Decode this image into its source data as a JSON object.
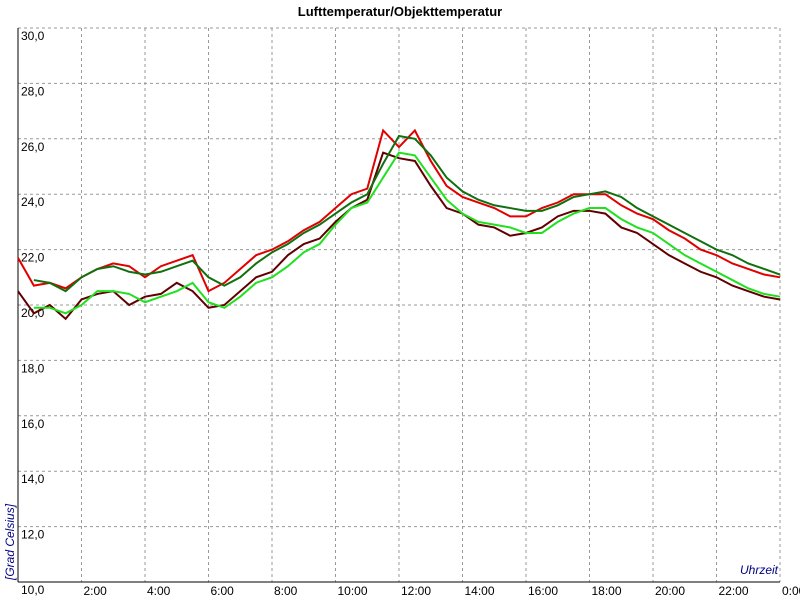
{
  "chart_data": {
    "type": "line",
    "title": "Lufttemperatur/Objekttemperatur",
    "ylabel": "[Grad Celsius]",
    "xlabel": "Uhrzeit",
    "x": [
      0,
      0.5,
      1,
      1.5,
      2,
      2.5,
      3,
      3.5,
      4,
      4.5,
      5,
      5.5,
      6,
      6.5,
      7,
      7.5,
      8,
      8.5,
      9,
      9.5,
      10,
      10.5,
      11,
      11.5,
      12,
      12.5,
      13,
      13.5,
      14,
      14.5,
      15,
      15.5,
      16,
      16.5,
      17,
      17.5,
      18,
      18.5,
      19,
      19.5,
      20,
      20.5,
      21,
      21.5,
      22,
      22.5,
      23,
      23.5,
      24
    ],
    "series": [
      {
        "color": "#e00000",
        "values": [
          21.7,
          20.7,
          20.8,
          20.6,
          21.0,
          21.3,
          21.5,
          21.4,
          21.0,
          21.4,
          21.6,
          21.8,
          20.5,
          20.8,
          21.3,
          21.8,
          22.0,
          22.3,
          22.7,
          23.0,
          23.5,
          24.0,
          24.2,
          26.3,
          25.7,
          26.3,
          25.2,
          24.3,
          23.9,
          23.7,
          23.5,
          23.2,
          23.2,
          23.5,
          23.7,
          24.0,
          24.0,
          24.0,
          23.6,
          23.3,
          23.1,
          22.7,
          22.4,
          22.0,
          21.8,
          21.5,
          21.3,
          21.1,
          21.0
        ]
      },
      {
        "color": "#600000",
        "values": [
          20.5,
          19.7,
          20.0,
          19.5,
          20.2,
          20.4,
          20.5,
          20.0,
          20.3,
          20.4,
          20.8,
          20.5,
          19.9,
          20.0,
          20.5,
          21.0,
          21.2,
          21.8,
          22.2,
          22.4,
          23.0,
          23.5,
          23.8,
          25.5,
          25.3,
          25.2,
          24.3,
          23.5,
          23.3,
          22.9,
          22.8,
          22.5,
          22.6,
          22.8,
          23.2,
          23.4,
          23.4,
          23.3,
          22.8,
          22.6,
          22.2,
          21.8,
          21.5,
          21.2,
          21.0,
          20.7,
          20.5,
          20.3,
          20.2
        ]
      },
      {
        "color": "#107010",
        "values": [
          null,
          20.9,
          20.8,
          20.5,
          21.0,
          21.3,
          21.4,
          21.2,
          21.1,
          21.2,
          21.4,
          21.6,
          21.0,
          20.7,
          21.0,
          21.5,
          21.9,
          22.2,
          22.6,
          22.9,
          23.3,
          23.7,
          24.0,
          25.1,
          26.1,
          26.0,
          25.4,
          24.6,
          24.1,
          23.8,
          23.6,
          23.5,
          23.4,
          23.4,
          23.6,
          23.9,
          24.0,
          24.1,
          23.9,
          23.5,
          23.2,
          22.9,
          22.6,
          22.3,
          22.0,
          21.8,
          21.5,
          21.3,
          21.1
        ]
      },
      {
        "color": "#20e020",
        "values": [
          null,
          19.9,
          19.9,
          19.7,
          20.0,
          20.5,
          20.5,
          20.4,
          20.1,
          20.3,
          20.5,
          20.8,
          20.1,
          19.9,
          20.3,
          20.8,
          21.0,
          21.4,
          21.9,
          22.2,
          22.9,
          23.5,
          23.7,
          24.6,
          25.5,
          25.4,
          24.6,
          23.8,
          23.3,
          23.0,
          22.9,
          22.8,
          22.6,
          22.6,
          23.0,
          23.3,
          23.5,
          23.5,
          23.1,
          22.8,
          22.6,
          22.2,
          21.8,
          21.5,
          21.2,
          20.9,
          20.6,
          20.4,
          20.3
        ]
      }
    ],
    "xlim": [
      0,
      24
    ],
    "xticks": [
      {
        "value": 2,
        "label": "2:00"
      },
      {
        "value": 4,
        "label": "4:00"
      },
      {
        "value": 6,
        "label": "6:00"
      },
      {
        "value": 8,
        "label": "8:00"
      },
      {
        "value": 10,
        "label": "10:00"
      },
      {
        "value": 12,
        "label": "12:00"
      },
      {
        "value": 14,
        "label": "14:00"
      },
      {
        "value": 16,
        "label": "16:00"
      },
      {
        "value": 18,
        "label": "18:00"
      },
      {
        "value": 20,
        "label": "20:00"
      },
      {
        "value": 22,
        "label": "22:00"
      },
      {
        "value": 24,
        "label": "0:00"
      }
    ],
    "ylim": [
      10,
      30
    ],
    "yticks": [
      {
        "value": 10,
        "label": "10,0"
      },
      {
        "value": 12,
        "label": "12,0"
      },
      {
        "value": 14,
        "label": "14,0"
      },
      {
        "value": 16,
        "label": "16,0"
      },
      {
        "value": 18,
        "label": "18,0"
      },
      {
        "value": 20,
        "label": "20,0"
      },
      {
        "value": 22,
        "label": "22,0"
      },
      {
        "value": 24,
        "label": "24,0"
      },
      {
        "value": 26,
        "label": "26,0"
      },
      {
        "value": 28,
        "label": "28,0"
      },
      {
        "value": 30,
        "label": "30,0"
      }
    ],
    "grid": true
  }
}
